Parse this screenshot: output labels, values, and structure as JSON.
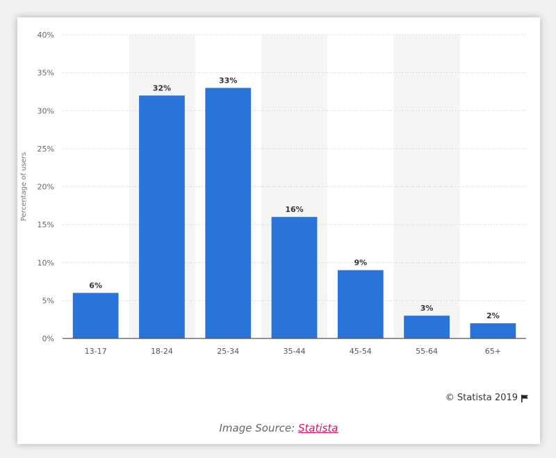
{
  "credit": {
    "text": "© Statista 2019"
  },
  "source": {
    "prefix": "Image Source:",
    "link_label": "Statista"
  },
  "colors": {
    "bar": "#2a73d9",
    "band": "#f5f5f5",
    "grid": "#dcdcdc",
    "link": "#e0115f"
  },
  "chart_data": {
    "type": "bar",
    "title": "",
    "xlabel": "",
    "ylabel": "Percentage of users",
    "categories": [
      "13-17",
      "18-24",
      "25-34",
      "35-44",
      "45-54",
      "55-64",
      "65+"
    ],
    "values": [
      6,
      32,
      33,
      16,
      9,
      3,
      2
    ],
    "data_labels": [
      "6%",
      "32%",
      "33%",
      "16%",
      "9%",
      "3%",
      "2%"
    ],
    "ylim": [
      0,
      40
    ],
    "yticks": [
      0,
      5,
      10,
      15,
      20,
      25,
      30,
      35,
      40
    ],
    "ytick_labels": [
      "0%",
      "5%",
      "10%",
      "15%",
      "20%",
      "25%",
      "30%",
      "35%",
      "40%"
    ],
    "grid": true,
    "legend": "none"
  }
}
